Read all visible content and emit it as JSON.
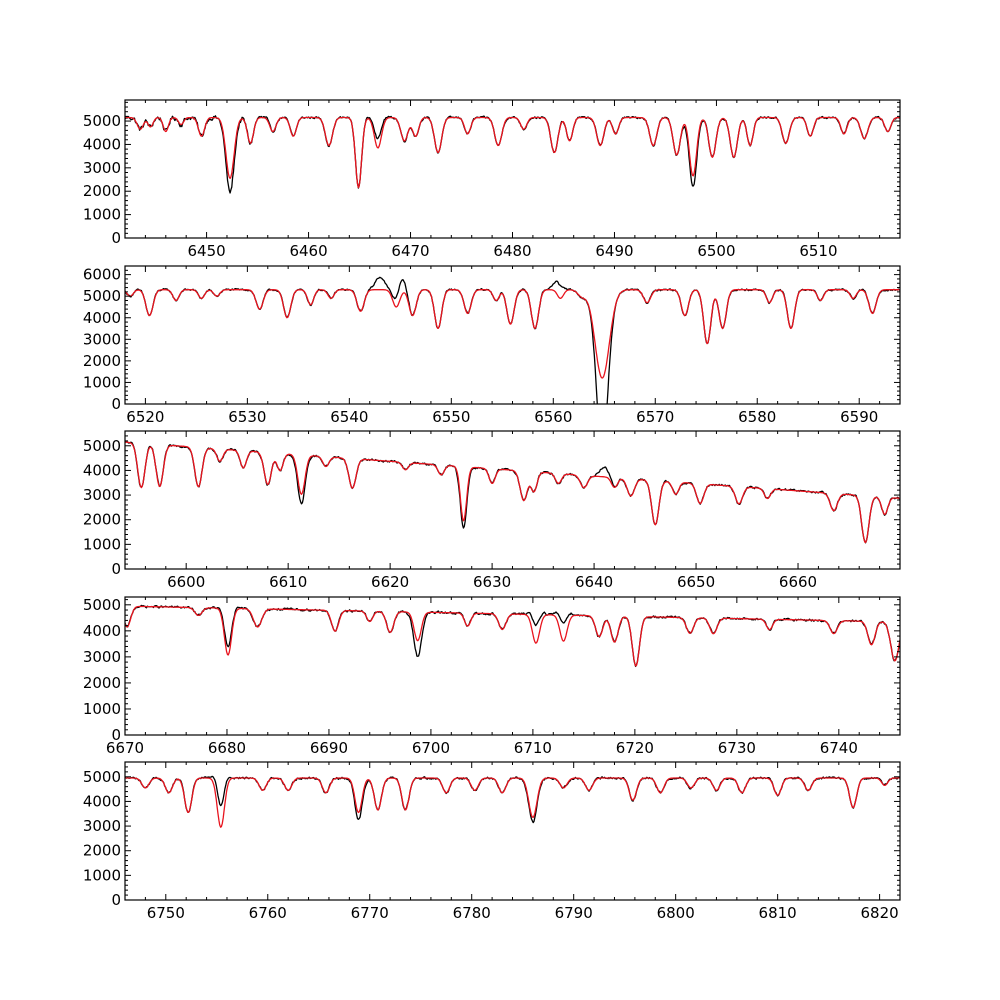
{
  "figure": {
    "colors": {
      "observed": "#000000",
      "model": "#e8141e",
      "background": "#ffffff"
    }
  },
  "chart_data": [
    {
      "type": "line",
      "xlim": [
        6442,
        6518
      ],
      "ylim": [
        0,
        5900
      ],
      "xticks": [
        6450,
        6460,
        6470,
        6480,
        6490,
        6500,
        6510
      ],
      "yticks": [
        0,
        1000,
        2000,
        3000,
        4000,
        5000
      ],
      "continuum": 5150,
      "lines": [
        [
          6443.5,
          500,
          0.3
        ],
        [
          6444.5,
          400,
          0.25
        ],
        [
          6446,
          600,
          0.25
        ],
        [
          6447.5,
          300,
          0.25
        ],
        [
          6449.5,
          800,
          0.3
        ],
        [
          6452.3,
          2600,
          0.4
        ],
        [
          6454.3,
          1100,
          0.3
        ],
        [
          6456.5,
          600,
          0.3
        ],
        [
          6458.5,
          800,
          0.3
        ],
        [
          6462,
          1200,
          0.35
        ],
        [
          6464.9,
          3000,
          0.3
        ],
        [
          6466.8,
          1300,
          0.35
        ],
        [
          6469.4,
          1000,
          0.35
        ],
        [
          6470.5,
          800,
          0.3
        ],
        [
          6472.7,
          1500,
          0.35
        ],
        [
          6475.6,
          700,
          0.3
        ],
        [
          6478.6,
          1200,
          0.35
        ],
        [
          6481.1,
          500,
          0.3
        ],
        [
          6484.1,
          1500,
          0.35
        ],
        [
          6485.6,
          1000,
          0.3
        ],
        [
          6488.6,
          1200,
          0.35
        ],
        [
          6490.1,
          700,
          0.3
        ],
        [
          6493.8,
          1200,
          0.35
        ],
        [
          6496.1,
          1600,
          0.35
        ],
        [
          6497.7,
          2500,
          0.35
        ],
        [
          6499.6,
          1700,
          0.35
        ],
        [
          6501.7,
          1700,
          0.35
        ],
        [
          6503.3,
          1200,
          0.3
        ],
        [
          6506.8,
          1100,
          0.35
        ],
        [
          6509.2,
          800,
          0.3
        ],
        [
          6512.5,
          700,
          0.3
        ],
        [
          6514.5,
          900,
          0.35
        ],
        [
          6516.8,
          600,
          0.3
        ]
      ],
      "model_differences": [
        [
          6452.3,
          -600
        ],
        [
          6497.7,
          -500
        ],
        [
          6466.8,
          400
        ]
      ]
    },
    {
      "type": "line",
      "xlim": [
        6518,
        6594
      ],
      "ylim": [
        0,
        6400
      ],
      "xticks": [
        6520,
        6530,
        6540,
        6550,
        6560,
        6570,
        6580,
        6590
      ],
      "yticks": [
        0,
        1000,
        2000,
        3000,
        4000,
        5000,
        6000
      ],
      "continuum": 5300,
      "lines": [
        [
          6518.5,
          300,
          0.3
        ],
        [
          6520.4,
          1200,
          0.35
        ],
        [
          6523,
          500,
          0.3
        ],
        [
          6525.5,
          400,
          0.3
        ],
        [
          6527,
          300,
          0.3
        ],
        [
          6531.2,
          900,
          0.35
        ],
        [
          6533.9,
          1300,
          0.35
        ],
        [
          6536.2,
          700,
          0.3
        ],
        [
          6538.2,
          400,
          0.3
        ],
        [
          6541.1,
          1000,
          0.35
        ],
        [
          6544.6,
          800,
          0.35
        ],
        [
          6546.2,
          1200,
          0.35
        ],
        [
          6548.7,
          1800,
          0.35
        ],
        [
          6551.6,
          1100,
          0.35
        ],
        [
          6554.4,
          500,
          0.3
        ],
        [
          6555.8,
          1600,
          0.35
        ],
        [
          6558.2,
          1800,
          0.35
        ],
        [
          6560.7,
          400,
          0.3
        ],
        [
          6562.8,
          300,
          0.4
        ],
        [
          6564.8,
          4100,
          0.7
        ],
        [
          6569.2,
          600,
          0.35
        ],
        [
          6572.9,
          1200,
          0.35
        ],
        [
          6575.1,
          2500,
          0.35
        ],
        [
          6576.6,
          1800,
          0.35
        ],
        [
          6581.2,
          600,
          0.3
        ],
        [
          6583.3,
          1800,
          0.35
        ],
        [
          6586.2,
          500,
          0.3
        ],
        [
          6589.4,
          400,
          0.3
        ],
        [
          6591.3,
          1100,
          0.35
        ]
      ],
      "model_differences": [
        [
          6564.8,
          -3650
        ],
        [
          6543.0,
          600
        ],
        [
          6545.0,
          700
        ],
        [
          6560.5,
          600
        ]
      ]
    },
    {
      "type": "line",
      "xlim": [
        6594,
        6670
      ],
      "ylim": [
        0,
        5600
      ],
      "xticks": [
        6600,
        6610,
        6620,
        6630,
        6640,
        6650,
        6660
      ],
      "yticks": [
        0,
        1000,
        2000,
        3000,
        4000,
        5000
      ],
      "continuum": 5150,
      "lines": [
        [
          6595.6,
          1800,
          0.35
        ],
        [
          6597.4,
          1700,
          0.35
        ],
        [
          6601.2,
          1600,
          0.35
        ],
        [
          6603.3,
          500,
          0.3
        ],
        [
          6605.6,
          700,
          0.3
        ],
        [
          6608.0,
          1300,
          0.35
        ],
        [
          6609.2,
          700,
          0.3
        ],
        [
          6611.3,
          1600,
          0.35
        ],
        [
          6613.7,
          400,
          0.3
        ],
        [
          6616.3,
          1200,
          0.35
        ],
        [
          6621.5,
          300,
          0.3
        ],
        [
          6625.0,
          400,
          0.3
        ],
        [
          6627.2,
          2200,
          0.3
        ],
        [
          6630.0,
          600,
          0.3
        ],
        [
          6633.1,
          1200,
          0.35
        ],
        [
          6634.1,
          800,
          0.3
        ],
        [
          6636.5,
          400,
          0.3
        ],
        [
          6639.0,
          500,
          0.35
        ],
        [
          6642.0,
          400,
          0.3
        ],
        [
          6643.6,
          700,
          0.35
        ],
        [
          6646.0,
          1800,
          0.35
        ],
        [
          6648.0,
          500,
          0.3
        ],
        [
          6650.4,
          800,
          0.35
        ],
        [
          6654.2,
          700,
          0.35
        ],
        [
          6657.0,
          400,
          0.3
        ],
        [
          6663.5,
          700,
          0.35
        ],
        [
          6666.6,
          1900,
          0.35
        ],
        [
          6668.5,
          700,
          0.3
        ]
      ],
      "continuum_slope": -30,
      "model_differences": [
        [
          6627.2,
          -300
        ],
        [
          6611.3,
          -400
        ],
        [
          6641.0,
          400
        ]
      ]
    },
    {
      "type": "line",
      "xlim": [
        6670,
        6746
      ],
      "ylim": [
        0,
        5300
      ],
      "xticks": [
        6670,
        6680,
        6690,
        6700,
        6710,
        6720,
        6730,
        6740
      ],
      "yticks": [
        0,
        1000,
        2000,
        3000,
        4000,
        5000
      ],
      "continuum": 4950,
      "lines": [
        [
          6670.2,
          800,
          0.35
        ],
        [
          6677.2,
          300,
          0.35
        ],
        [
          6680.1,
          1800,
          0.35
        ],
        [
          6683.0,
          700,
          0.4
        ],
        [
          6690.6,
          800,
          0.35
        ],
        [
          6694.0,
          400,
          0.3
        ],
        [
          6696.0,
          800,
          0.35
        ],
        [
          6698.7,
          1100,
          0.35
        ],
        [
          6703.6,
          500,
          0.3
        ],
        [
          6707.0,
          600,
          0.35
        ],
        [
          6710.3,
          1100,
          0.35
        ],
        [
          6713.0,
          1000,
          0.35
        ],
        [
          6716.5,
          800,
          0.35
        ],
        [
          6718.0,
          1000,
          0.35
        ],
        [
          6720.1,
          1900,
          0.35
        ],
        [
          6725.4,
          600,
          0.35
        ],
        [
          6727.7,
          600,
          0.35
        ],
        [
          6733.2,
          400,
          0.3
        ],
        [
          6739.5,
          500,
          0.35
        ],
        [
          6743.2,
          900,
          0.35
        ],
        [
          6745.5,
          1500,
          0.4
        ]
      ],
      "continuum_slope": -8,
      "model_differences": [
        [
          6710.3,
          700
        ],
        [
          6713.0,
          700
        ],
        [
          6680.1,
          300
        ],
        [
          6698.7,
          -600
        ]
      ]
    },
    {
      "type": "line",
      "xlim": [
        6746,
        6822
      ],
      "ylim": [
        0,
        5600
      ],
      "xticks": [
        6750,
        6760,
        6770,
        6780,
        6790,
        6800,
        6810,
        6820
      ],
      "yticks": [
        0,
        1000,
        2000,
        3000,
        4000,
        5000
      ],
      "continuum": 4950,
      "lines": [
        [
          6748.0,
          400,
          0.35
        ],
        [
          6750.3,
          600,
          0.35
        ],
        [
          6752.2,
          1400,
          0.35
        ],
        [
          6755.4,
          2000,
          0.35
        ],
        [
          6759.5,
          500,
          0.35
        ],
        [
          6762.0,
          500,
          0.35
        ],
        [
          6765.7,
          600,
          0.35
        ],
        [
          6768.9,
          1400,
          0.35
        ],
        [
          6770.8,
          1300,
          0.35
        ],
        [
          6773.5,
          1300,
          0.35
        ],
        [
          6777.5,
          600,
          0.35
        ],
        [
          6780.3,
          500,
          0.35
        ],
        [
          6783.0,
          600,
          0.35
        ],
        [
          6786.0,
          1600,
          0.4
        ],
        [
          6789.0,
          400,
          0.35
        ],
        [
          6791.5,
          500,
          0.35
        ],
        [
          6795.8,
          900,
          0.35
        ],
        [
          6798.5,
          600,
          0.35
        ],
        [
          6801.5,
          400,
          0.35
        ],
        [
          6804.0,
          500,
          0.35
        ],
        [
          6806.5,
          600,
          0.35
        ],
        [
          6810.0,
          700,
          0.35
        ],
        [
          6813.0,
          500,
          0.35
        ],
        [
          6817.4,
          1200,
          0.35
        ],
        [
          6820.5,
          300,
          0.3
        ]
      ],
      "model_differences": [
        [
          6755.4,
          900
        ],
        [
          6786.0,
          -200
        ],
        [
          6768.9,
          -300
        ]
      ]
    }
  ]
}
